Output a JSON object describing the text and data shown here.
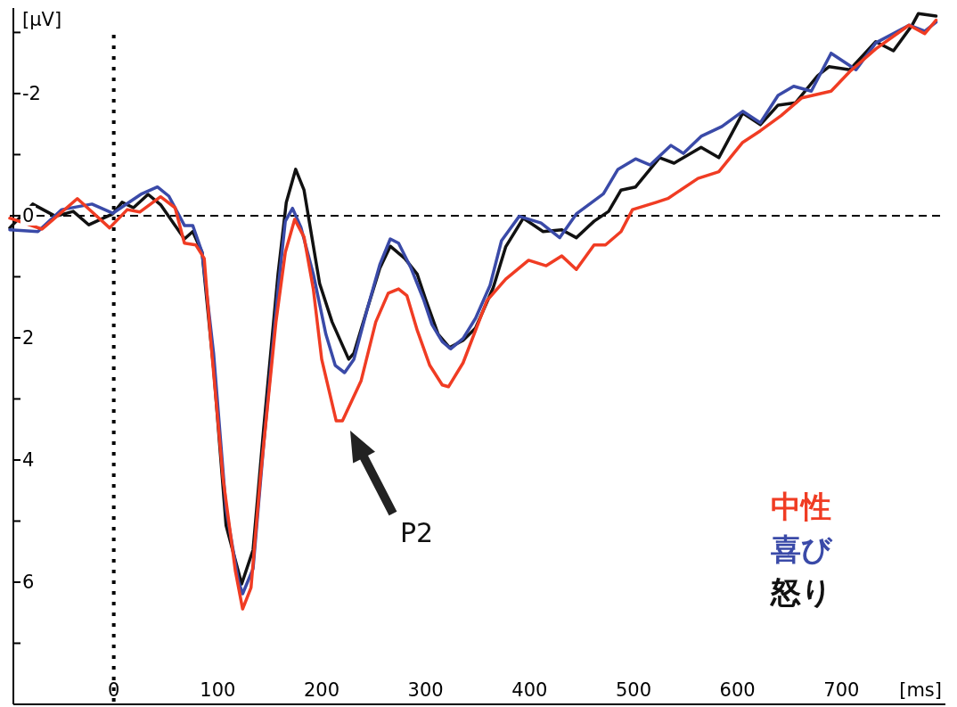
{
  "chart_data": {
    "type": "line",
    "xlim": [
      -100,
      800
    ],
    "ylim": [
      8,
      -3.4
    ],
    "xticks": [
      0,
      100,
      200,
      300,
      400,
      500,
      600,
      700
    ],
    "yticks": [
      {
        "value": -3,
        "label": null
      },
      -2,
      {
        "value": -1,
        "label": null
      },
      0,
      {
        "value": 1,
        "label": null
      },
      2,
      {
        "value": 3,
        "label": null
      },
      4,
      {
        "value": 5,
        "label": null
      },
      6,
      {
        "value": 7,
        "label": null
      }
    ],
    "xlabel": "[ms]",
    "ylabel": "[μV]",
    "grid": false,
    "legend": "bottom right",
    "marker": "none",
    "line_style": "solid",
    "ref_lines": [
      {
        "axis": "y",
        "value": 0,
        "color": "#000000",
        "line_style": "dashed"
      },
      {
        "axis": "x",
        "value": 0,
        "color": "#000000",
        "line_style": "dotted"
      }
    ],
    "annotations": [
      "P2"
    ],
    "series": [
      {
        "name": "中性",
        "color": "#f03c23",
        "x": [
          -100,
          -69,
          -35,
          -4,
          13,
          25,
          45,
          59,
          68,
          79,
          87,
          93,
          105,
          117,
          124,
          132,
          141,
          156,
          165,
          174,
          183,
          192,
          200,
          214,
          220,
          238,
          252,
          264,
          274,
          282,
          292,
          304,
          316,
          322,
          336,
          359,
          377,
          399,
          416,
          431,
          445,
          462,
          473,
          488,
          499,
          522,
          533,
          562,
          582,
          605,
          622,
          642,
          662,
          690,
          708,
          733,
          765,
          780,
          791
        ],
        "values": [
          0.04,
          0.22,
          -0.28,
          0.2,
          -0.1,
          -0.06,
          -0.31,
          -0.13,
          0.45,
          0.48,
          0.7,
          1.99,
          4.29,
          5.82,
          6.44,
          6.09,
          4.29,
          1.74,
          0.6,
          0.06,
          0.35,
          1.21,
          2.35,
          3.36,
          3.36,
          2.7,
          1.74,
          1.27,
          1.2,
          1.31,
          1.88,
          2.45,
          2.77,
          2.8,
          2.41,
          1.39,
          1.04,
          0.73,
          0.82,
          0.66,
          0.88,
          0.48,
          0.48,
          0.26,
          -0.1,
          -0.22,
          -0.28,
          -0.61,
          -0.72,
          -1.2,
          -1.39,
          -1.64,
          -1.93,
          -2.04,
          -2.36,
          -2.73,
          -3.12,
          -2.98,
          -3.2
        ]
      },
      {
        "name": "喜び",
        "color": "#3a4aa8",
        "x": [
          -100,
          -73,
          -50,
          -21,
          -1,
          27,
          42,
          53,
          68,
          76,
          85,
          96,
          108,
          120,
          124,
          134,
          144,
          158,
          165,
          172,
          180,
          192,
          204,
          213,
          222,
          231,
          244,
          256,
          266,
          274,
          286,
          298,
          306,
          316,
          324,
          336,
          348,
          362,
          373,
          390,
          411,
          429,
          445,
          471,
          485,
          502,
          516,
          536,
          548,
          565,
          585,
          605,
          622,
          639,
          654,
          671,
          690,
          714,
          733,
          765,
          780,
          791
        ],
        "values": [
          0.23,
          0.26,
          -0.1,
          -0.19,
          -0.04,
          -0.36,
          -0.47,
          -0.32,
          0.16,
          0.16,
          0.6,
          2.25,
          4.8,
          5.99,
          6.19,
          5.78,
          3.78,
          1.21,
          0.09,
          -0.12,
          0.19,
          0.96,
          1.94,
          2.45,
          2.57,
          2.35,
          1.52,
          0.8,
          0.38,
          0.45,
          0.86,
          1.37,
          1.78,
          2.06,
          2.18,
          2.01,
          1.68,
          1.14,
          0.41,
          0.01,
          0.12,
          0.36,
          -0.03,
          -0.36,
          -0.76,
          -0.93,
          -0.83,
          -1.15,
          -1.02,
          -1.3,
          -1.46,
          -1.71,
          -1.52,
          -1.97,
          -2.12,
          -2.04,
          -2.66,
          -2.39,
          -2.83,
          -3.12,
          -3.02,
          -3.17
        ]
      },
      {
        "name": "怒り",
        "color": "#111111",
        "x": [
          -100,
          -78,
          -56,
          -39,
          -24,
          -1,
          8,
          19,
          33,
          45,
          59,
          68,
          76,
          85,
          96,
          108,
          123,
          134,
          144,
          158,
          166,
          175,
          183,
          198,
          210,
          226,
          231,
          244,
          256,
          266,
          280,
          292,
          300,
          312,
          323,
          336,
          348,
          365,
          377,
          394,
          413,
          431,
          445,
          462,
          476,
          488,
          502,
          525,
          539,
          565,
          582,
          605,
          622,
          639,
          656,
          677,
          688,
          708,
          733,
          750,
          768,
          774,
          791
        ],
        "values": [
          0.2,
          -0.19,
          0.01,
          -0.07,
          0.15,
          -0.03,
          -0.22,
          -0.13,
          -0.35,
          -0.18,
          0.16,
          0.38,
          0.26,
          0.6,
          2.5,
          5.07,
          6.03,
          5.47,
          3.52,
          0.96,
          -0.22,
          -0.76,
          -0.42,
          1.11,
          1.74,
          2.35,
          2.25,
          1.52,
          0.86,
          0.5,
          0.7,
          0.96,
          1.37,
          1.94,
          2.16,
          2.04,
          1.84,
          1.18,
          0.51,
          0.04,
          0.26,
          0.23,
          0.36,
          0.09,
          -0.07,
          -0.42,
          -0.47,
          -0.95,
          -0.86,
          -1.12,
          -0.95,
          -1.68,
          -1.49,
          -1.81,
          -1.85,
          -2.29,
          -2.44,
          -2.39,
          -2.85,
          -2.7,
          -3.12,
          -3.31,
          -3.27
        ]
      }
    ]
  }
}
